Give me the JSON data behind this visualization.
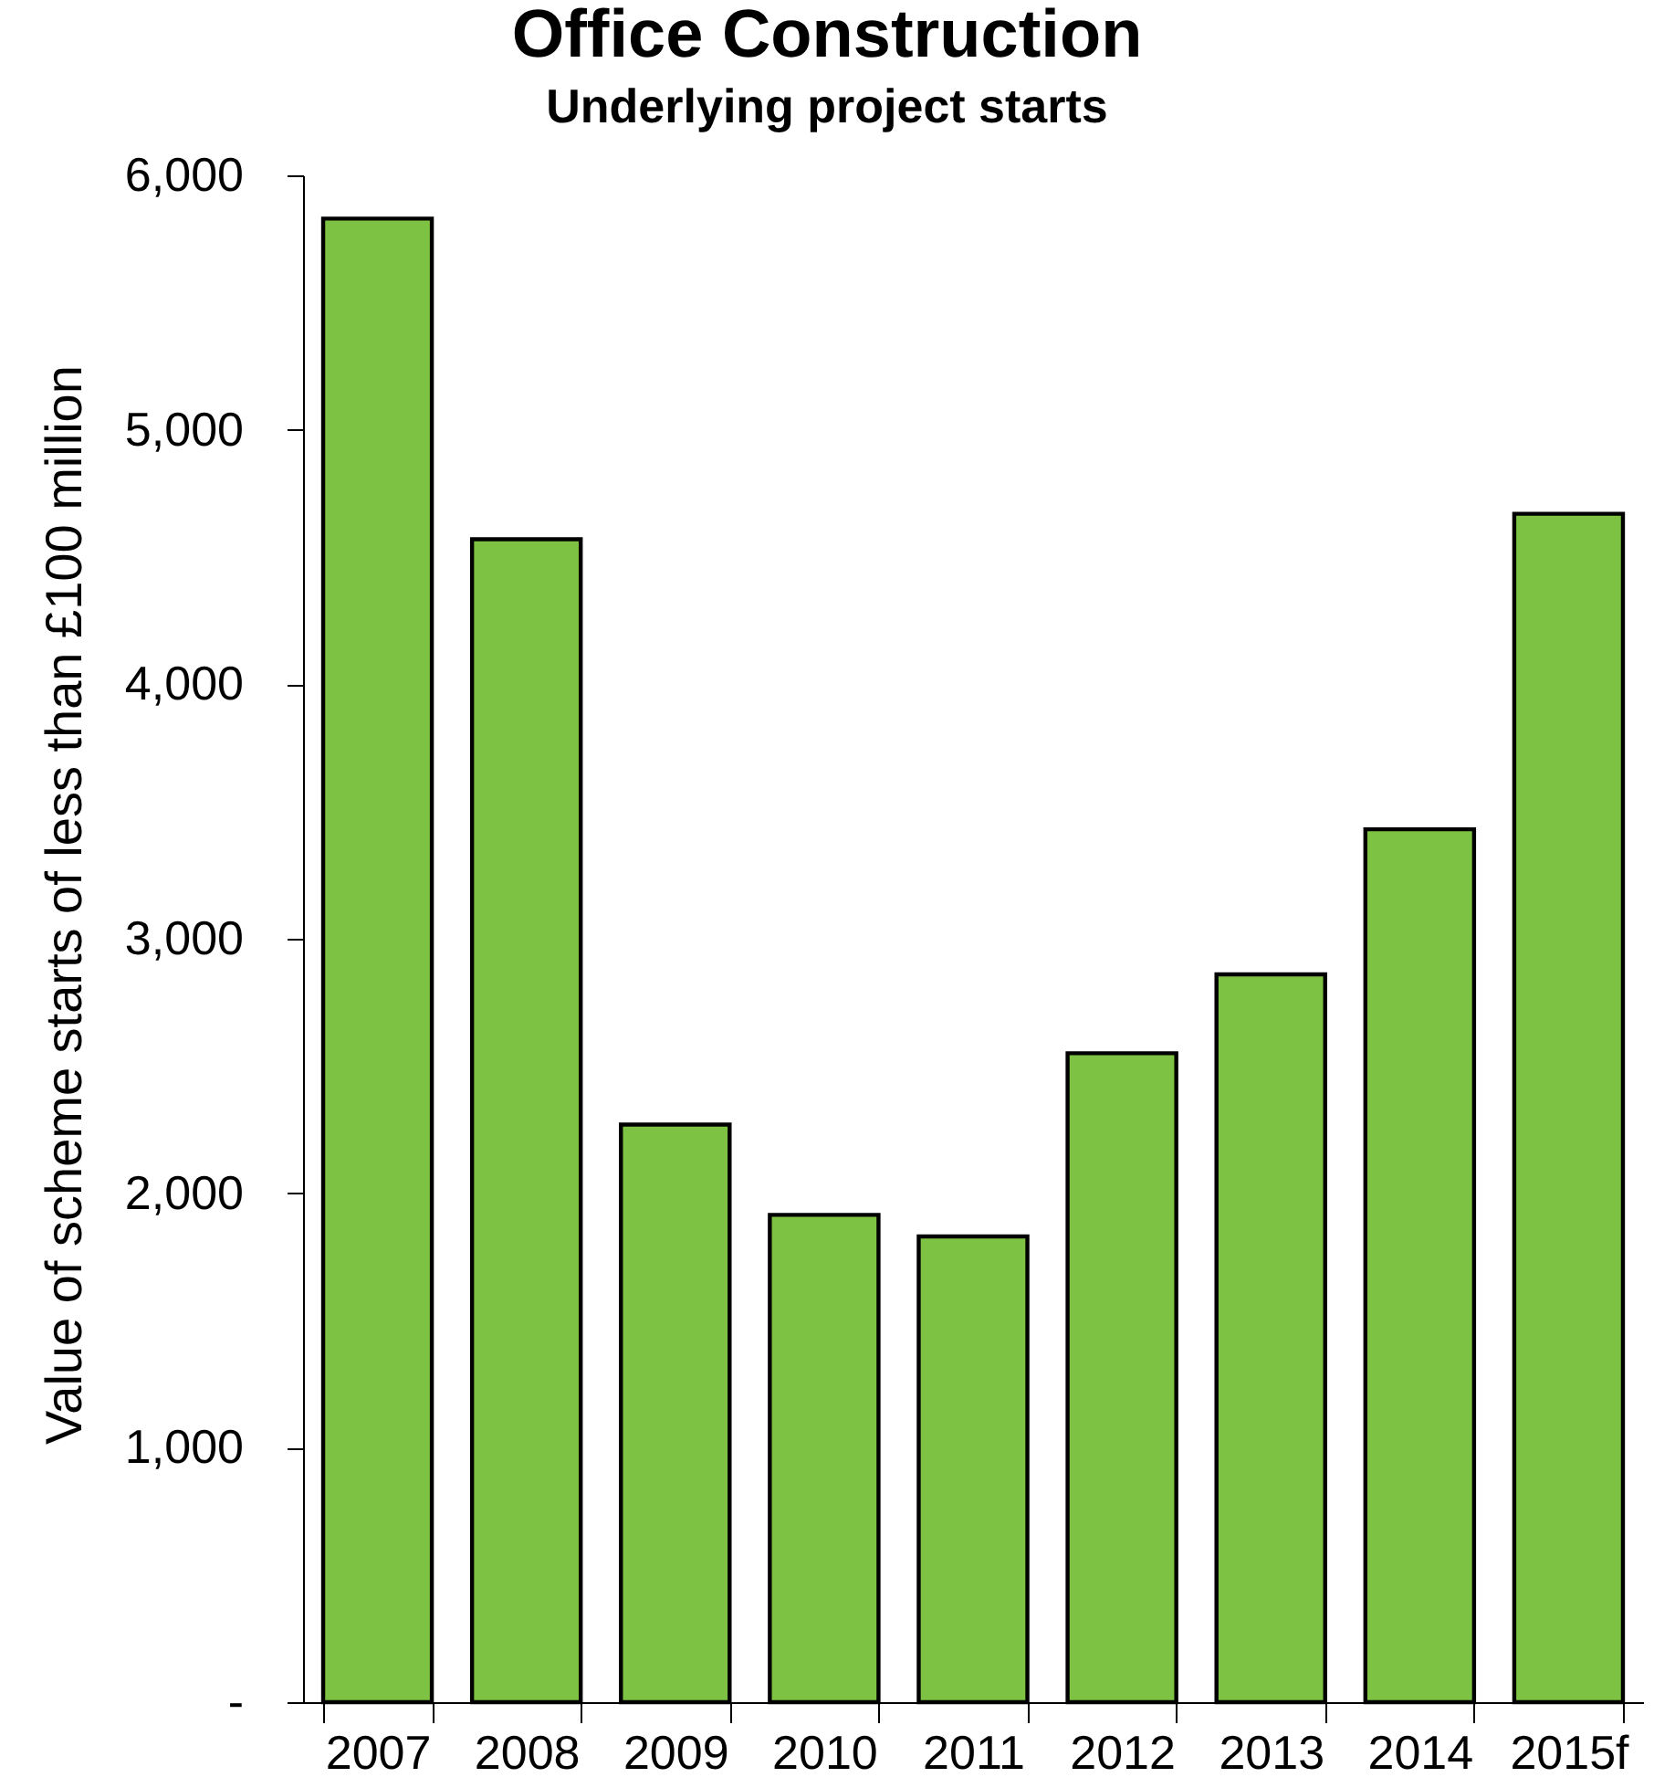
{
  "chart_data": {
    "type": "bar",
    "title": "Office Construction",
    "subtitle": "Underlying project starts",
    "ylabel": "Value of scheme starts of less than £100 million",
    "categories": [
      "2007",
      "2008",
      "2009",
      "2010",
      "2011",
      "2012",
      "2013",
      "2014",
      "2015f"
    ],
    "values": [
      5830,
      4570,
      2270,
      1915,
      1830,
      2550,
      2860,
      3430,
      4670
    ],
    "color": "#7dc242",
    "ylim": [
      0,
      6000
    ],
    "yticks": [
      {
        "value": 0,
        "label": "-"
      },
      {
        "value": 1000,
        "label": "1,000"
      },
      {
        "value": 2000,
        "label": "2,000"
      },
      {
        "value": 3000,
        "label": "3,000"
      },
      {
        "value": 4000,
        "label": "4,000"
      },
      {
        "value": 5000,
        "label": "5,000"
      },
      {
        "value": 6000,
        "label": "6,000"
      }
    ],
    "grid": false
  }
}
